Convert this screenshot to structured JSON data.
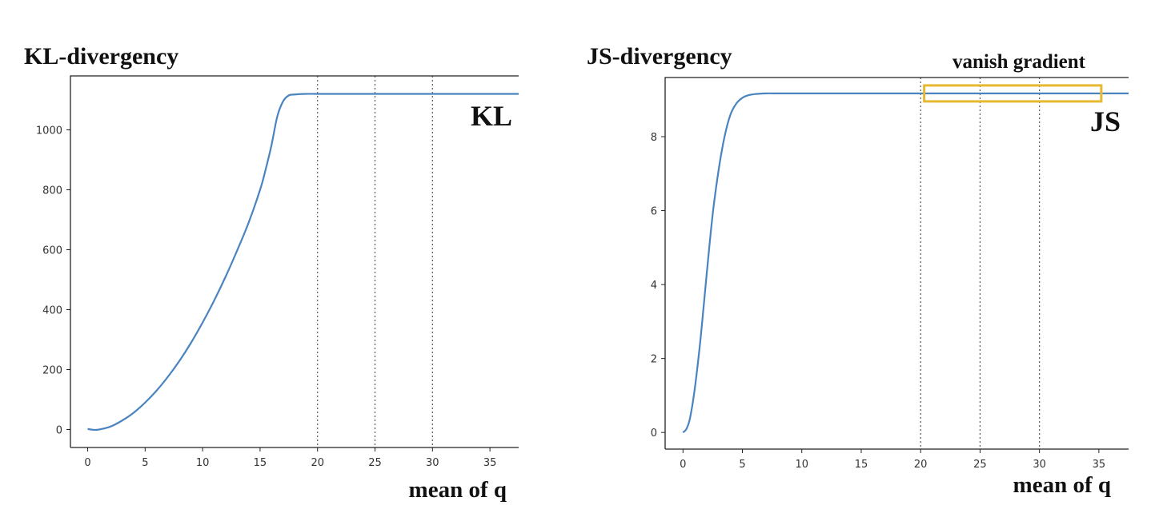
{
  "chart_data": [
    {
      "type": "line",
      "title": "KL-divergency",
      "curve_label": "KL",
      "xlabel": "mean of q",
      "ylabel": "",
      "xlim": [
        -1.5,
        37.5
      ],
      "ylim": [
        -60,
        1180
      ],
      "xticks": [
        0,
        5,
        10,
        15,
        20,
        25,
        30,
        35
      ],
      "yticks": [
        0,
        200,
        400,
        600,
        800,
        1000
      ],
      "vlines": [
        20,
        25,
        30
      ],
      "color": "#4a84c0",
      "series": [
        {
          "x": [
            0,
            0.5,
            1,
            2,
            3,
            4,
            5,
            6,
            7,
            8,
            9,
            10,
            11,
            12,
            13,
            14,
            15,
            15.5,
            16,
            16.5,
            17,
            17.5,
            18,
            19,
            20,
            25,
            30,
            35,
            37.5
          ],
          "values": [
            2,
            -1,
            0,
            10,
            30,
            56,
            90,
            130,
            177,
            230,
            290,
            357,
            430,
            510,
            597,
            690,
            800,
            870,
            950,
            1045,
            1095,
            1115,
            1118,
            1120,
            1120,
            1120,
            1120,
            1120,
            1120
          ]
        }
      ]
    },
    {
      "type": "line",
      "title": "JS-divergency",
      "curve_label": "JS",
      "annotation": "vanish gradient",
      "annotation_box_x": [
        20.3,
        35.2
      ],
      "xlabel": "mean of q",
      "ylabel": "",
      "xlim": [
        -1.5,
        37.5
      ],
      "ylim": [
        -0.45,
        9.6
      ],
      "xticks": [
        0,
        5,
        10,
        15,
        20,
        25,
        30,
        35
      ],
      "yticks": [
        0,
        2,
        4,
        6,
        8
      ],
      "vlines": [
        20,
        25,
        30
      ],
      "color": "#4a84c0",
      "box_color": "#e8b830",
      "series": [
        {
          "x": [
            0,
            0.3,
            0.6,
            1,
            1.5,
            2,
            2.5,
            3,
            3.5,
            4,
            4.5,
            5,
            5.5,
            6,
            7,
            8,
            10,
            15,
            20,
            25,
            30,
            35,
            37.5
          ],
          "values": [
            0,
            0.1,
            0.4,
            1.2,
            2.6,
            4.3,
            5.9,
            7.1,
            8.0,
            8.6,
            8.9,
            9.05,
            9.12,
            9.15,
            9.17,
            9.17,
            9.17,
            9.17,
            9.17,
            9.17,
            9.17,
            9.17,
            9.17
          ]
        }
      ]
    }
  ]
}
